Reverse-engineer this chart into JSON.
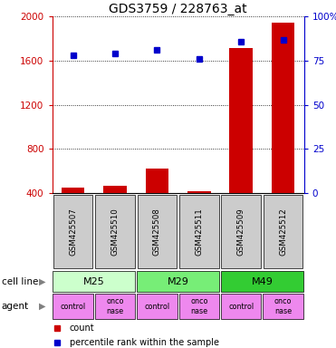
{
  "title": "GDS3759 / 228763_at",
  "samples": [
    "GSM425507",
    "GSM425510",
    "GSM425508",
    "GSM425511",
    "GSM425509",
    "GSM425512"
  ],
  "counts": [
    450,
    470,
    620,
    420,
    1720,
    1950
  ],
  "percentiles": [
    78,
    79,
    81,
    76,
    86,
    87
  ],
  "ylim_left": [
    400,
    2000
  ],
  "ylim_right": [
    0,
    100
  ],
  "yticks_left": [
    400,
    800,
    1200,
    1600,
    2000
  ],
  "yticks_right": [
    0,
    25,
    50,
    75,
    100
  ],
  "bar_color": "#cc0000",
  "dot_color": "#0000cc",
  "cell_lines": [
    {
      "label": "M25",
      "span": [
        0,
        2
      ],
      "color": "#ccffcc"
    },
    {
      "label": "M29",
      "span": [
        2,
        4
      ],
      "color": "#77ee77"
    },
    {
      "label": "M49",
      "span": [
        4,
        6
      ],
      "color": "#33cc33"
    }
  ],
  "agents": [
    "control",
    "onconase",
    "control",
    "onconase",
    "control",
    "onconase"
  ],
  "agent_color": "#ee88ee",
  "gsm_bg_color": "#cccccc",
  "legend_count_color": "#cc0000",
  "legend_pct_color": "#0000cc",
  "title_fontsize": 10,
  "tick_fontsize": 7.5,
  "label_fontsize": 7.5
}
